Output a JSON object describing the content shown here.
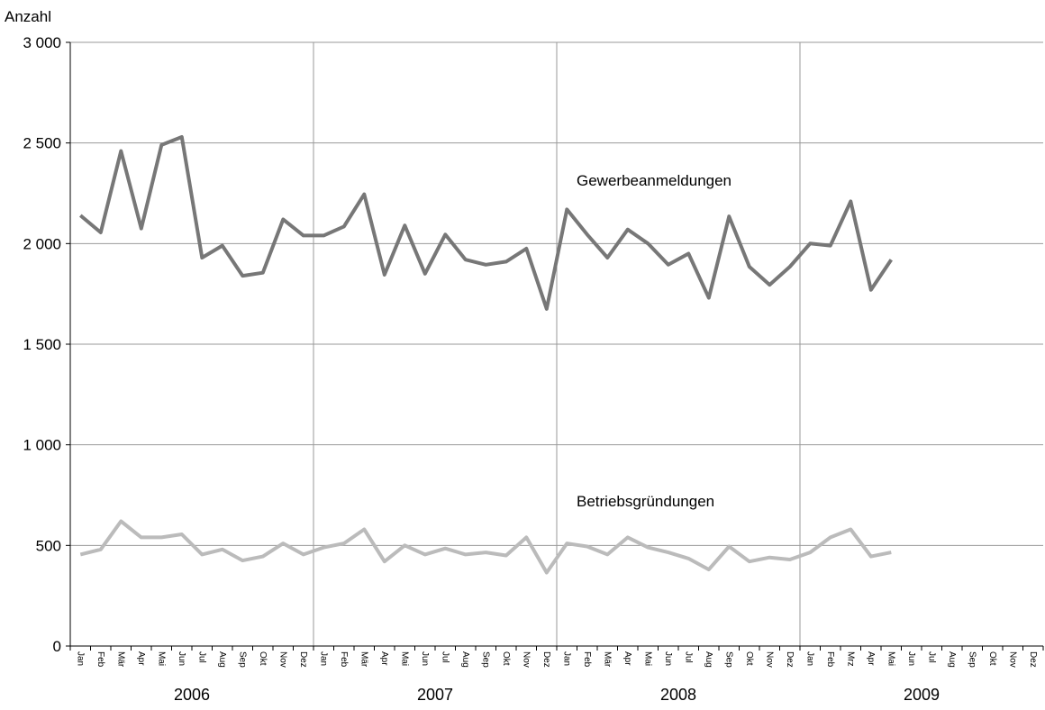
{
  "chart_data": {
    "type": "line",
    "y_label": "Anzahl",
    "categories": [
      "Jan",
      "Feb",
      "Mär",
      "Apr",
      "Mai",
      "Jun",
      "Jul",
      "Aug",
      "Sep",
      "Okt",
      "Nov",
      "Dez",
      "Jan",
      "Feb",
      "Mär",
      "Apr",
      "Mai",
      "Jun",
      "Jul",
      "Aug",
      "Sep",
      "Okt",
      "Nov",
      "Dez",
      "Jan",
      "Feb",
      "Mär",
      "Apr",
      "Mai",
      "Jun",
      "Jul",
      "Aug",
      "Sep",
      "Okt",
      "Nov",
      "Dez",
      "Jan",
      "Feb",
      "Mrz",
      "Apr",
      "Mai",
      "Jun",
      "Jul",
      "Aug",
      "Sep",
      "Okt",
      "Nov",
      "Dez"
    ],
    "year_groups": [
      "2006",
      "2007",
      "2008",
      "2009"
    ],
    "series": [
      {
        "name": "Gewerbeanmeldungen",
        "color": "#777777",
        "values": [
          2140,
          2055,
          2460,
          2075,
          2490,
          2530,
          1930,
          1990,
          1840,
          1855,
          2120,
          2040,
          2040,
          2085,
          2245,
          1845,
          2090,
          1850,
          2045,
          1920,
          1895,
          1910,
          1975,
          1675,
          2170,
          2045,
          1930,
          2070,
          2000,
          1895,
          1950,
          1730,
          2135,
          1885,
          1795,
          1885,
          2000,
          1990,
          2210,
          1770,
          1920,
          null,
          null,
          null,
          null,
          null,
          null,
          null
        ]
      },
      {
        "name": "Betriebsgründungen",
        "color": "#bbbbbb",
        "values": [
          455,
          480,
          620,
          540,
          540,
          555,
          455,
          480,
          425,
          445,
          510,
          455,
          490,
          510,
          580,
          420,
          500,
          455,
          485,
          455,
          465,
          450,
          540,
          365,
          510,
          495,
          455,
          540,
          490,
          465,
          435,
          380,
          495,
          420,
          440,
          430,
          465,
          540,
          580,
          445,
          465,
          null,
          null,
          null,
          null,
          null,
          null,
          null
        ]
      }
    ],
    "ylim": [
      0,
      3000
    ],
    "yticks": [
      0,
      500,
      {
        "value": 1000,
        "label": "1 000"
      },
      {
        "value": 1500,
        "label": "1 500"
      },
      {
        "value": 2000,
        "label": "2 000"
      },
      {
        "value": 2500,
        "label": "2 500"
      },
      {
        "value": 3000,
        "label": "3 000"
      }
    ],
    "grid": true
  }
}
